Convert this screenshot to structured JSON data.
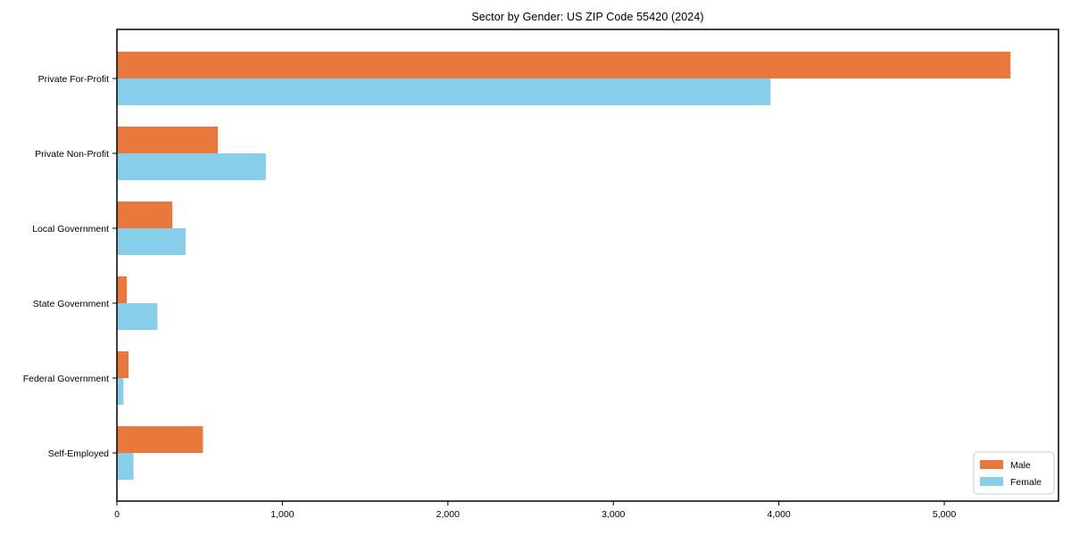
{
  "chart_data": {
    "type": "bar",
    "orientation": "horizontal",
    "title": "Sector by Gender: US ZIP Code 55420 (2024)",
    "categories": [
      "Private For-Profit",
      "Private Non-Profit",
      "Local Government",
      "State Government",
      "Federal Government",
      "Self-Employed"
    ],
    "series": [
      {
        "name": "Male",
        "color": "#E8783C",
        "values": [
          5400,
          610,
          335,
          60,
          70,
          520
        ]
      },
      {
        "name": "Female",
        "color": "#87CEEB",
        "values": [
          3950,
          900,
          415,
          245,
          40,
          100
        ]
      }
    ],
    "xlabel": "",
    "ylabel": "",
    "xlim": [
      0,
      5690
    ],
    "xticks": [
      0,
      1000,
      2000,
      3000,
      4000,
      5000
    ],
    "xtick_labels": [
      "0",
      "1,000",
      "2,000",
      "3,000",
      "4,000",
      "5,000"
    ],
    "grid": false,
    "legend": {
      "position": "lower right",
      "entries": [
        {
          "label": "Male",
          "color": "#E8783C"
        },
        {
          "label": "Female",
          "color": "#87CEEB"
        }
      ]
    },
    "colors": {
      "axis": "#000000",
      "text": "#000000",
      "legend_border": "#cccccc",
      "background": "#ffffff"
    }
  }
}
